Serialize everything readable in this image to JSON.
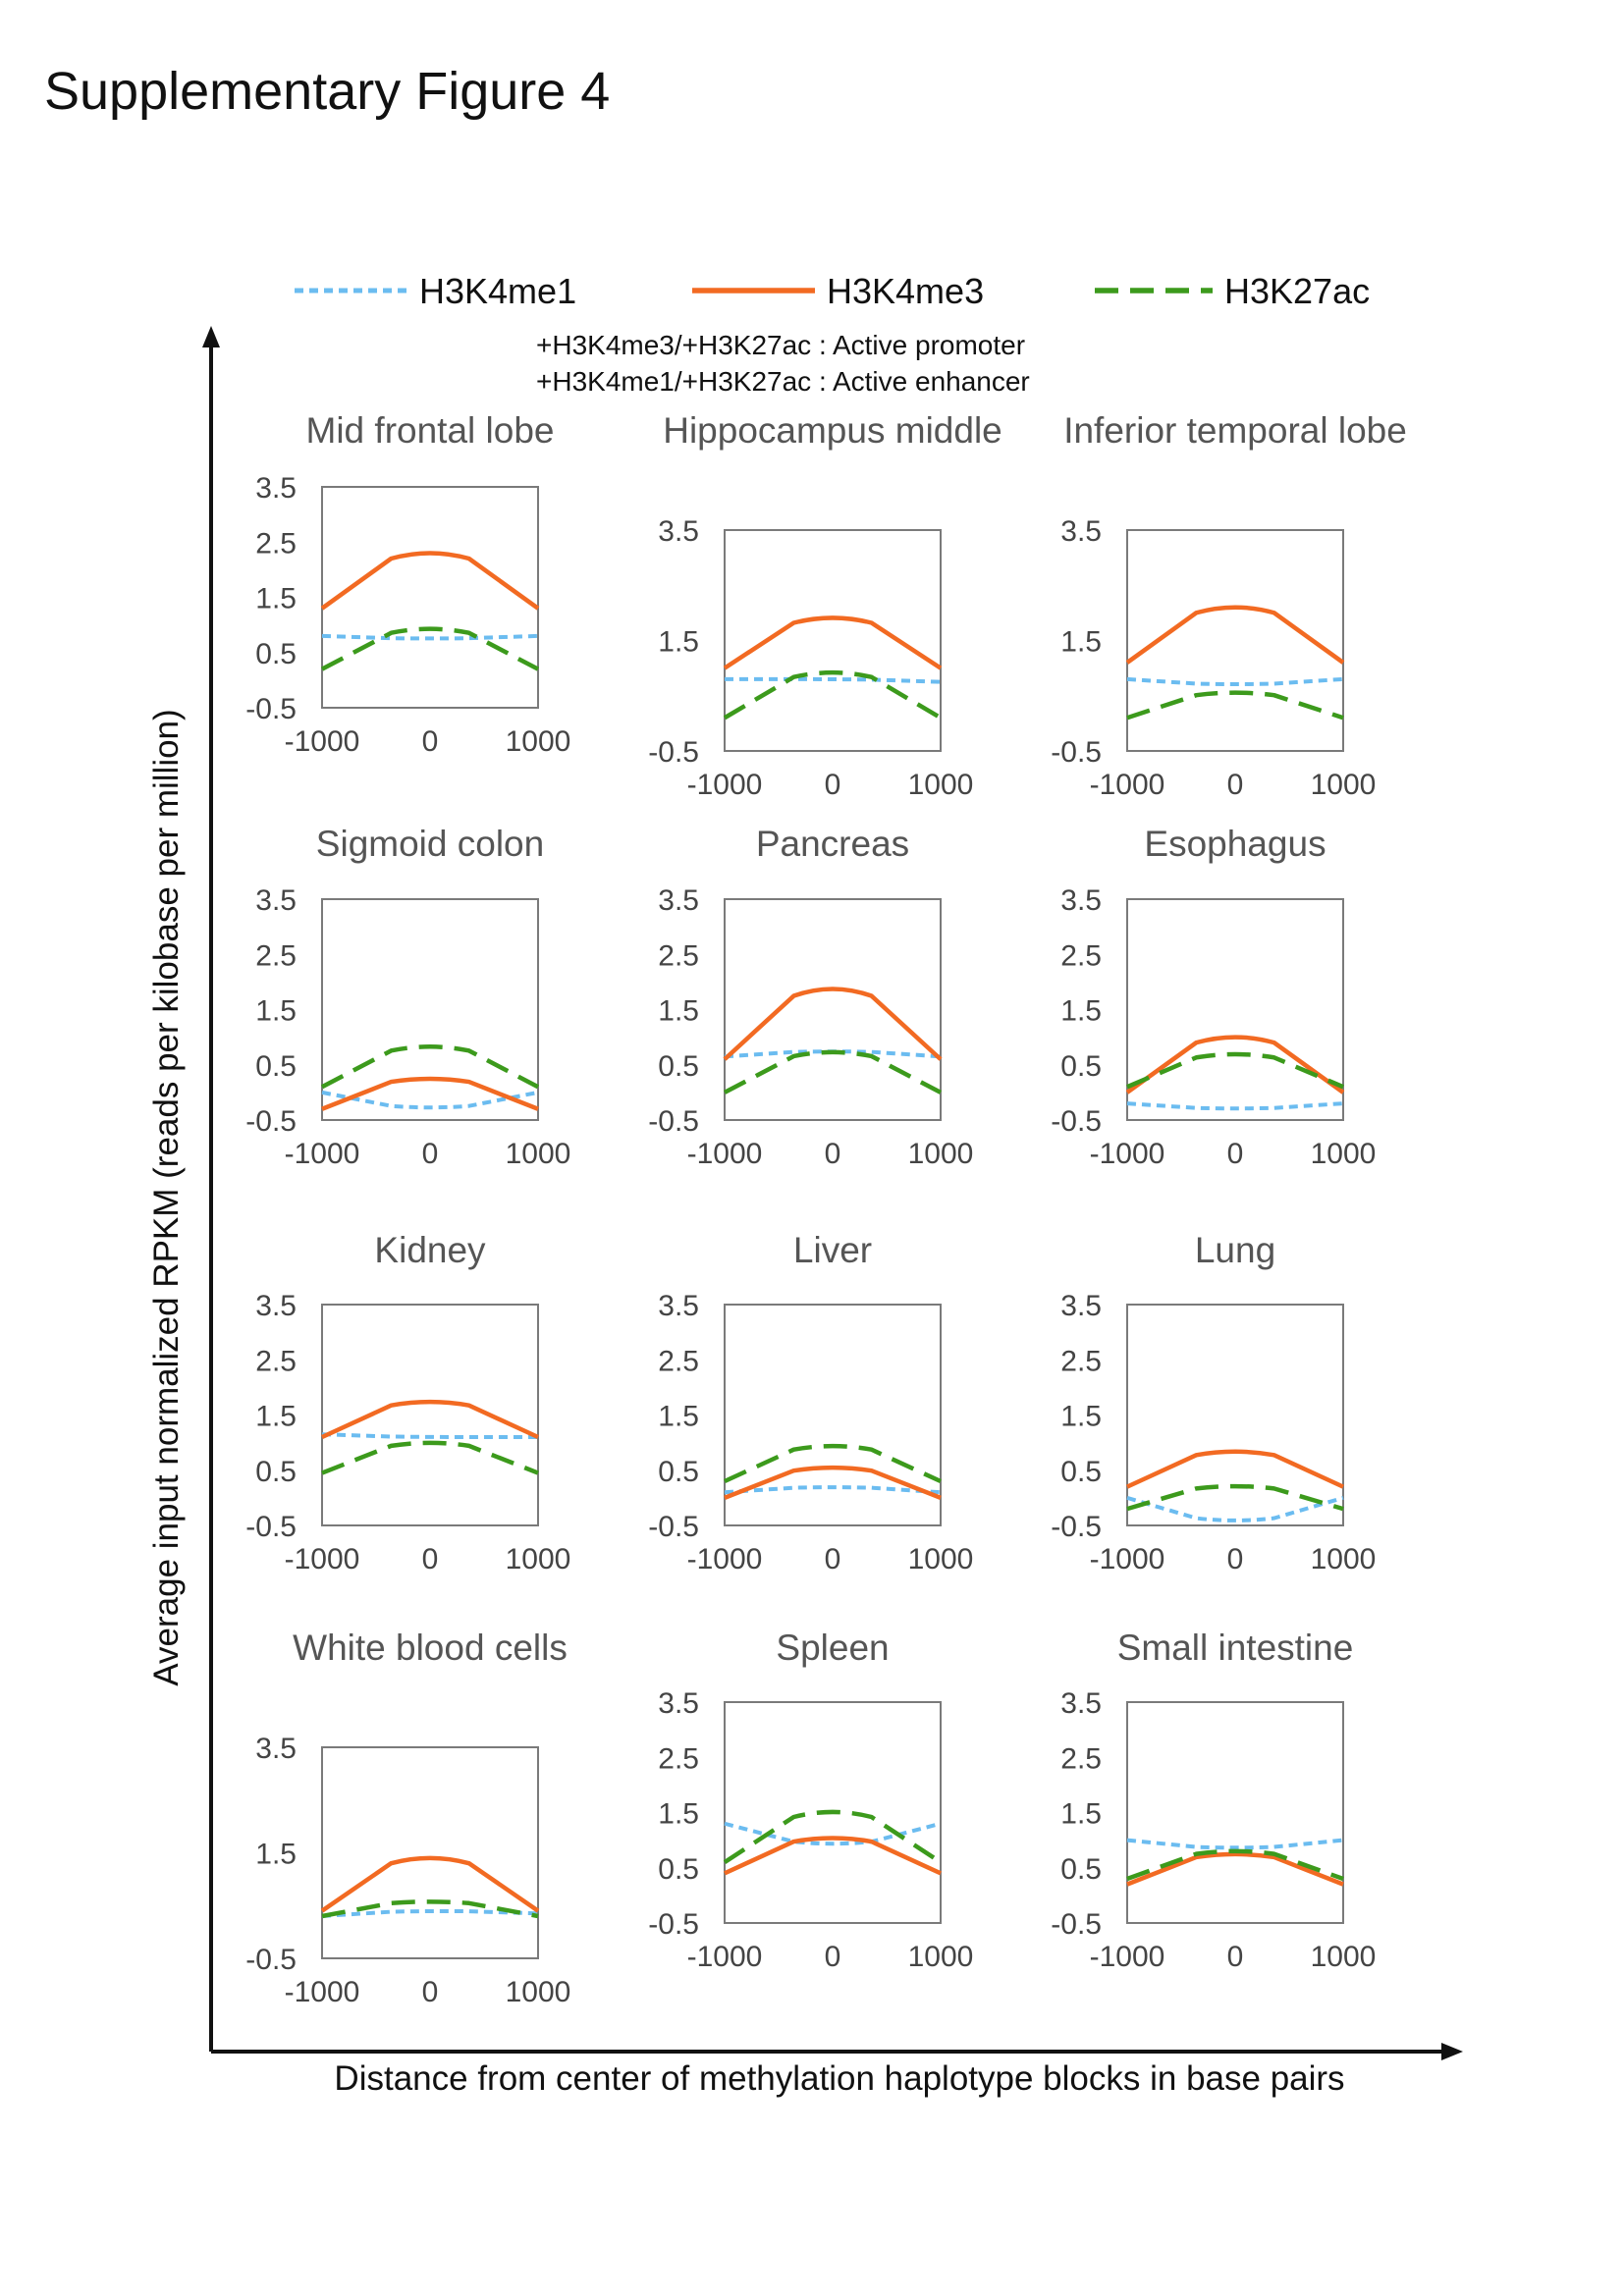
{
  "figure_title": "Supplementary Figure 4",
  "legend": {
    "items": [
      {
        "label": "H3K4me1",
        "color": "#6bbcf0",
        "style": "dotted"
      },
      {
        "label": "H3K4me3",
        "color": "#f26a22",
        "style": "solid"
      },
      {
        "label": "H3K27ac",
        "color": "#3c9a1c",
        "style": "dashed"
      }
    ],
    "note_promoter": "+H3K4me3/+H3K27ac : Active promoter",
    "note_enhancer": "+H3K4me1/+H3K27ac : Active enhancer"
  },
  "y_axis_title": "Average input normalized RPKM (reads per kilobase per million)",
  "x_axis_title": "Distance from center of methylation haplotype blocks in base pairs",
  "chart_data": [
    {
      "type": "line",
      "title": "Mid frontal lobe",
      "x": [
        -1000,
        0,
        1000
      ],
      "xticks": [
        "-1000",
        "0",
        "1000"
      ],
      "ylim": [
        -0.5,
        3.5
      ],
      "yticks": [
        "3.5",
        "2.5",
        "1.5",
        "0.5",
        "-0.5"
      ],
      "series": [
        {
          "name": "H3K4me1",
          "values": [
            0.8,
            0.75,
            0.8
          ]
        },
        {
          "name": "H3K4me3",
          "values": [
            1.3,
            2.4,
            1.3
          ]
        },
        {
          "name": "H3K27ac",
          "values": [
            0.2,
            1.0,
            0.2
          ]
        }
      ]
    },
    {
      "type": "line",
      "title": "Hippocampus middle",
      "x": [
        -1000,
        0,
        1000
      ],
      "xticks": [
        "-1000",
        "0",
        "1000"
      ],
      "ylim": [
        -0.5,
        3.5
      ],
      "yticks": [
        "3.5",
        "1.5",
        "-0.5"
      ],
      "series": [
        {
          "name": "H3K4me1",
          "values": [
            0.8,
            0.8,
            0.75
          ]
        },
        {
          "name": "H3K4me3",
          "values": [
            1.0,
            2.0,
            1.0
          ]
        },
        {
          "name": "H3K27ac",
          "values": [
            0.1,
            1.0,
            0.1
          ]
        }
      ]
    },
    {
      "type": "line",
      "title": "Inferior temporal lobe",
      "x": [
        -1000,
        0,
        1000
      ],
      "xticks": [
        "-1000",
        "0",
        "1000"
      ],
      "ylim": [
        -0.5,
        3.5
      ],
      "yticks": [
        "3.5",
        "1.5",
        "-0.5"
      ],
      "series": [
        {
          "name": "H3K4me1",
          "values": [
            0.8,
            0.7,
            0.8
          ]
        },
        {
          "name": "H3K4me3",
          "values": [
            1.1,
            2.2,
            1.1
          ]
        },
        {
          "name": "H3K27ac",
          "values": [
            0.1,
            0.6,
            0.1
          ]
        }
      ]
    },
    {
      "type": "line",
      "title": "Sigmoid colon",
      "x": [
        -1000,
        0,
        1000
      ],
      "xticks": [
        "-1000",
        "0",
        "1000"
      ],
      "ylim": [
        -0.5,
        3.5
      ],
      "yticks": [
        "3.5",
        "2.5",
        "1.5",
        "0.5",
        "-0.5"
      ],
      "series": [
        {
          "name": "H3K4me1",
          "values": [
            0.0,
            -0.3,
            0.0
          ]
        },
        {
          "name": "H3K4me3",
          "values": [
            -0.3,
            0.3,
            -0.3
          ]
        },
        {
          "name": "H3K27ac",
          "values": [
            0.1,
            0.9,
            0.1
          ]
        }
      ]
    },
    {
      "type": "line",
      "title": "Pancreas",
      "x": [
        -1000,
        0,
        1000
      ],
      "xticks": [
        "-1000",
        "0",
        "1000"
      ],
      "ylim": [
        -0.5,
        3.5
      ],
      "yticks": [
        "3.5",
        "2.5",
        "1.5",
        "0.5",
        "-0.5"
      ],
      "series": [
        {
          "name": "H3K4me1",
          "values": [
            0.65,
            0.75,
            0.65
          ]
        },
        {
          "name": "H3K4me3",
          "values": [
            0.6,
            2.0,
            0.6
          ]
        },
        {
          "name": "H3K27ac",
          "values": [
            0.0,
            0.8,
            0.0
          ]
        }
      ]
    },
    {
      "type": "line",
      "title": "Esophagus",
      "x": [
        -1000,
        0,
        1000
      ],
      "xticks": [
        "-1000",
        "0",
        "1000"
      ],
      "ylim": [
        -0.5,
        3.5
      ],
      "yticks": [
        "3.5",
        "2.5",
        "1.5",
        "0.5",
        "-0.5"
      ],
      "series": [
        {
          "name": "H3K4me1",
          "values": [
            -0.2,
            -0.3,
            -0.2
          ]
        },
        {
          "name": "H3K4me3",
          "values": [
            0.0,
            1.1,
            0.0
          ]
        },
        {
          "name": "H3K27ac",
          "values": [
            0.1,
            0.75,
            0.1
          ]
        }
      ]
    },
    {
      "type": "line",
      "title": "Kidney",
      "x": [
        -1000,
        0,
        1000
      ],
      "xticks": [
        "-1000",
        "0",
        "1000"
      ],
      "ylim": [
        -0.5,
        3.5
      ],
      "yticks": [
        "3.5",
        "2.5",
        "1.5",
        "0.5",
        "-0.5"
      ],
      "series": [
        {
          "name": "H3K4me1",
          "values": [
            1.15,
            1.1,
            1.1
          ]
        },
        {
          "name": "H3K4me3",
          "values": [
            1.1,
            1.8,
            1.1
          ]
        },
        {
          "name": "H3K27ac",
          "values": [
            0.45,
            1.05,
            0.45
          ]
        }
      ]
    },
    {
      "type": "line",
      "title": "Liver",
      "x": [
        -1000,
        0,
        1000
      ],
      "xticks": [
        "-1000",
        "0",
        "1000"
      ],
      "ylim": [
        -0.5,
        3.5
      ],
      "yticks": [
        "3.5",
        "2.5",
        "1.5",
        "0.5",
        "-0.5"
      ],
      "series": [
        {
          "name": "H3K4me1",
          "values": [
            0.1,
            0.2,
            0.1
          ]
        },
        {
          "name": "H3K4me3",
          "values": [
            0.0,
            0.6,
            0.0
          ]
        },
        {
          "name": "H3K27ac",
          "values": [
            0.3,
            1.0,
            0.3
          ]
        }
      ]
    },
    {
      "type": "line",
      "title": "Lung",
      "x": [
        -1000,
        0,
        1000
      ],
      "xticks": [
        "-1000",
        "0",
        "1000"
      ],
      "ylim": [
        -0.5,
        3.5
      ],
      "yticks": [
        "3.5",
        "2.5",
        "1.5",
        "0.5",
        "-0.5"
      ],
      "series": [
        {
          "name": "H3K4me1",
          "values": [
            0.0,
            -0.45,
            0.0
          ]
        },
        {
          "name": "H3K4me3",
          "values": [
            0.2,
            0.9,
            0.2
          ]
        },
        {
          "name": "H3K27ac",
          "values": [
            -0.2,
            0.25,
            -0.2
          ]
        }
      ]
    },
    {
      "type": "line",
      "title": "White blood cells",
      "x": [
        -1000,
        0,
        1000
      ],
      "xticks": [
        "-1000",
        "0",
        "1000"
      ],
      "ylim": [
        -0.5,
        3.5
      ],
      "yticks": [
        "3.5",
        "1.5",
        "-0.5"
      ],
      "series": [
        {
          "name": "H3K4me1",
          "values": [
            0.3,
            0.4,
            0.35
          ]
        },
        {
          "name": "H3K4me3",
          "values": [
            0.4,
            1.5,
            0.4
          ]
        },
        {
          "name": "H3K27ac",
          "values": [
            0.3,
            0.6,
            0.3
          ]
        }
      ]
    },
    {
      "type": "line",
      "title": "Spleen",
      "x": [
        -1000,
        0,
        1000
      ],
      "xticks": [
        "-1000",
        "0",
        "1000"
      ],
      "ylim": [
        -0.5,
        3.5
      ],
      "yticks": [
        "3.5",
        "2.5",
        "1.5",
        "0.5",
        "-0.5"
      ],
      "series": [
        {
          "name": "H3K4me1",
          "values": [
            1.3,
            0.9,
            1.3
          ]
        },
        {
          "name": "H3K4me3",
          "values": [
            0.4,
            1.1,
            0.4
          ]
        },
        {
          "name": "H3K27ac",
          "values": [
            0.6,
            1.6,
            0.6
          ]
        }
      ]
    },
    {
      "type": "line",
      "title": "Small intestine",
      "x": [
        -1000,
        0,
        1000
      ],
      "xticks": [
        "-1000",
        "0",
        "1000"
      ],
      "ylim": [
        -0.5,
        3.5
      ],
      "yticks": [
        "3.5",
        "2.5",
        "1.5",
        "0.5",
        "-0.5"
      ],
      "series": [
        {
          "name": "H3K4me1",
          "values": [
            1.0,
            0.85,
            1.0
          ]
        },
        {
          "name": "H3K4me3",
          "values": [
            0.2,
            0.8,
            0.2
          ]
        },
        {
          "name": "H3K27ac",
          "values": [
            0.3,
            0.85,
            0.3
          ]
        }
      ]
    }
  ]
}
